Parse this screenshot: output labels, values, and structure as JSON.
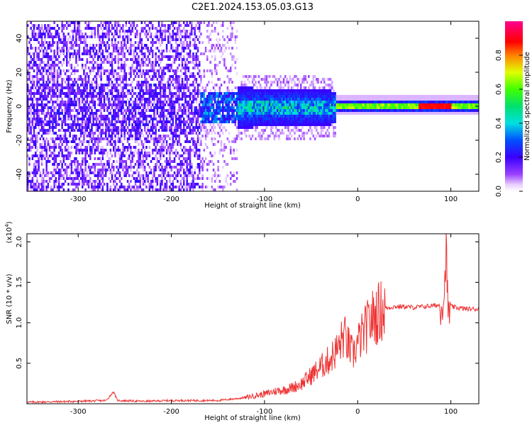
{
  "title": "C2E1.2024.153.05.03.G13",
  "chart_data": [
    {
      "type": "heatmap",
      "xlabel": "Height of straight line (km)",
      "ylabel": "Frequency (Hz)",
      "xlim": [
        -355,
        130
      ],
      "ylim": [
        -50,
        50
      ],
      "xticks": [
        -300,
        -200,
        -100,
        0,
        100
      ],
      "yticks": [
        -40,
        -20,
        0,
        20,
        40
      ],
      "colorbar": {
        "label": "Normalized spectral amplitude",
        "range": [
          0,
          1
        ],
        "ticks": [
          "0.0",
          "0.2",
          "0.4",
          "0.6",
          "0.8"
        ],
        "colormap": "rainbow (white-purple-blue-cyan-green-yellow-red-magenta)"
      },
      "regions": [
        {
          "x": [
            -355,
            -130
          ],
          "freq_spread": 50,
          "amplitude": 0.15,
          "description": "broadband noise"
        },
        {
          "x": [
            -170,
            -25
          ],
          "freq_spread": 10,
          "amplitude": 0.4
        },
        {
          "x": [
            -20,
            130
          ],
          "freq_spread": 2,
          "amplitude": 0.7
        },
        {
          "x": [
            70,
            100
          ],
          "freq_spread": 1,
          "amplitude": 0.9
        }
      ]
    },
    {
      "type": "line",
      "xlabel": "Height of straight line (km)",
      "ylabel": "SNR (10 * v/v)",
      "multiplier": "(x10",
      "multiplier_exp": "4",
      "multiplier_close": ")",
      "xlim": [
        -355,
        130
      ],
      "ylim": [
        0,
        2.1
      ],
      "xticks": [
        -300,
        -200,
        -100,
        0,
        100
      ],
      "yticks": [
        "0.5",
        "1.0",
        "1.5",
        "2.0"
      ],
      "color": "#ee3333",
      "series": [
        {
          "x": [
            -355,
            -300,
            -270,
            -262,
            -258,
            -230,
            -200,
            -150,
            -125,
            -110,
            -100,
            -90,
            -80,
            -70,
            -60,
            -50,
            -40,
            -30,
            -20,
            -15,
            -10,
            -5,
            0,
            5,
            10,
            15,
            20,
            25,
            30,
            40,
            50,
            60,
            70,
            80,
            90,
            93,
            95,
            97,
            100,
            110,
            120,
            130
          ],
          "values": [
            0.02,
            0.03,
            0.04,
            0.15,
            0.04,
            0.03,
            0.04,
            0.04,
            0.07,
            0.1,
            0.12,
            0.15,
            0.17,
            0.2,
            0.25,
            0.35,
            0.45,
            0.55,
            0.7,
            0.85,
            0.72,
            0.6,
            0.75,
            0.85,
            0.95,
            1.05,
            1.1,
            1.15,
            1.18,
            1.2,
            1.2,
            1.19,
            1.2,
            1.21,
            1.22,
            1.35,
            1.95,
            1.1,
            1.2,
            1.18,
            1.17,
            1.17
          ]
        }
      ]
    }
  ]
}
